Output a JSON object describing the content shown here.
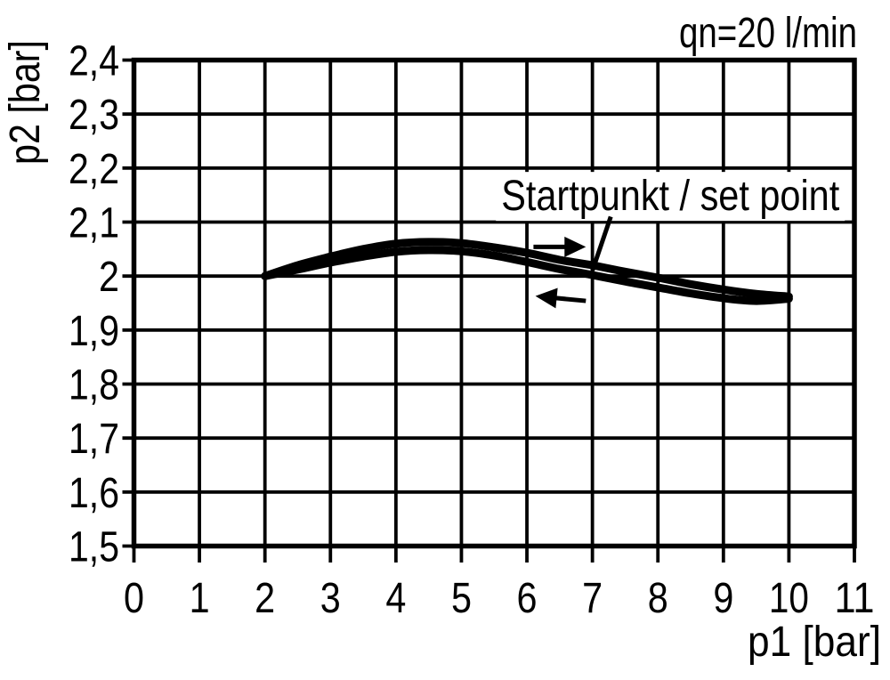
{
  "chart_data": {
    "type": "line",
    "title": "qn=20 l/min",
    "xlabel": "p1 [bar]",
    "ylabel": "p2 [bar]",
    "xlim": [
      0,
      11
    ],
    "ylim": [
      1.5,
      2.4
    ],
    "grid": "on",
    "colors": {
      "foreground": "#000000",
      "background": "#ffffff"
    },
    "x_ticks": {
      "values": [
        0,
        1,
        2,
        3,
        4,
        5,
        6,
        7,
        8,
        9,
        10,
        11
      ],
      "labels": [
        "0",
        "1",
        "2",
        "3",
        "4",
        "5",
        "6",
        "7",
        "8",
        "9",
        "10",
        "11"
      ]
    },
    "y_ticks": {
      "values": [
        2.4,
        2.3,
        2.2,
        2.1,
        2.0,
        1.9,
        1.8,
        1.7,
        1.6,
        1.5
      ],
      "labels": [
        "2,4",
        "2,3",
        "2,2",
        "2,1",
        "2",
        "1,9",
        "1,8",
        "1,7",
        "1,6",
        "1,5"
      ]
    },
    "x": [
      2,
      2.5,
      3,
      3.5,
      4,
      4.5,
      5,
      5.5,
      6,
      6.5,
      7,
      7.5,
      8,
      8.5,
      9,
      9.5,
      10
    ],
    "series": [
      {
        "name": "hysteresis-upper-branch",
        "values": [
          2.0,
          2.02,
          2.036,
          2.05,
          2.06,
          2.063,
          2.061,
          2.053,
          2.043,
          2.03,
          2.02,
          2.008,
          1.997,
          1.985,
          1.975,
          1.967,
          1.962
        ]
      },
      {
        "name": "hysteresis-lower-branch",
        "values": [
          2.0,
          2.012,
          2.025,
          2.036,
          2.045,
          2.048,
          2.046,
          2.038,
          2.026,
          2.013,
          2.002,
          1.99,
          1.979,
          1.968,
          1.959,
          1.954,
          1.958
        ]
      }
    ],
    "annotation": {
      "label": "Startpunkt / set point",
      "label_center_x": 8.19,
      "label_baseline_y": 2.122,
      "leader_from": [
        7.28,
        2.11
      ],
      "leader_to": [
        7.0,
        2.01
      ]
    },
    "arrows": [
      {
        "name": "direction-arrow-right",
        "direction": "right",
        "from": [
          6.1,
          2.054
        ],
        "to": [
          6.9,
          2.054
        ]
      },
      {
        "name": "direction-arrow-left",
        "direction": "left",
        "from": [
          6.9,
          1.954
        ],
        "to": [
          6.13,
          1.963
        ]
      }
    ]
  }
}
